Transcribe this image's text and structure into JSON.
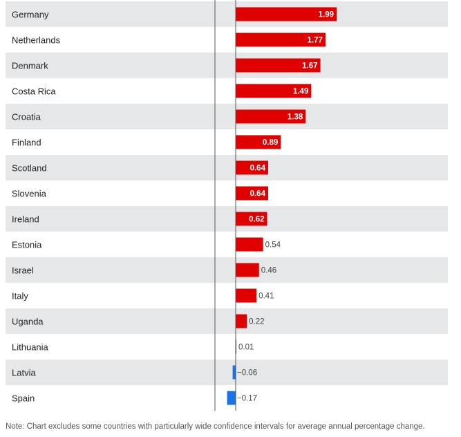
{
  "chart_data": {
    "type": "bar",
    "orientation": "horizontal",
    "categories": [
      "Germany",
      "Netherlands",
      "Denmark",
      "Costa Rica",
      "Croatia",
      "Finland",
      "Scotland",
      "Slovenia",
      "Ireland",
      "Estonia",
      "Israel",
      "Italy",
      "Uganda",
      "Lithuania",
      "Latvia",
      "Spain"
    ],
    "values": [
      1.99,
      1.77,
      1.67,
      1.49,
      1.38,
      0.89,
      0.64,
      0.64,
      0.62,
      0.54,
      0.46,
      0.41,
      0.22,
      0.01,
      -0.06,
      -0.17
    ],
    "value_labels": [
      "1.99",
      "1.77",
      "1.67",
      "1.49",
      "1.38",
      "0.89",
      "0.64",
      "0.64",
      "0.62",
      "0.54",
      "0.46",
      "0.41",
      "0.22",
      "0.01",
      "−0.06",
      "−0.17"
    ],
    "positive_color": "#e00000",
    "negative_color": "#1a73e8",
    "row_shade_color": "#e6e7e9",
    "xlim": [
      -0.4,
      2.09
    ],
    "grid": false
  },
  "note": "Note: Chart excludes some countries with particularly wide confidence intervals for average annual percentage change."
}
